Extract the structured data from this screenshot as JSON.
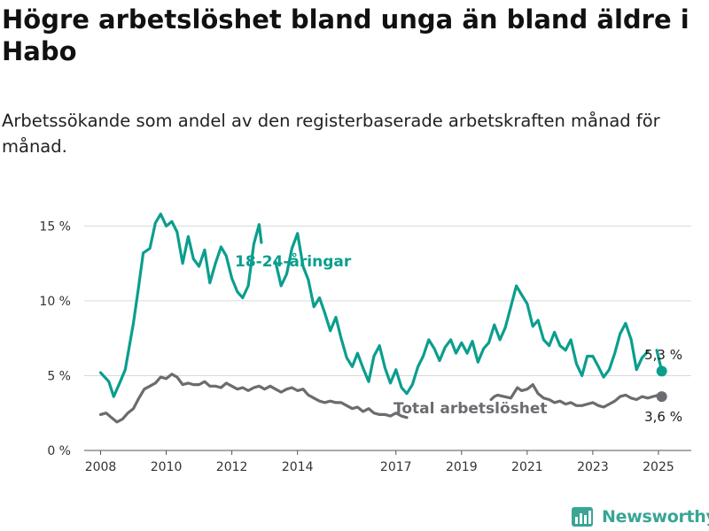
{
  "title": "Högre arbetslöshet bland unga än bland äldre i Habo",
  "subtitle": "Arbetssökande som andel av den registerbaserade arbetskraften månad för månad.",
  "brand": {
    "name": "Newsworthy",
    "color": "#3aa594"
  },
  "colors": {
    "youth": "#0b9e8e",
    "total": "#6b6b70",
    "grid": "#d9d9d9",
    "axis": "#333333"
  },
  "chart_data": {
    "type": "line",
    "x_ticks": [
      "2008",
      "2010",
      "2012",
      "2014",
      "2017",
      "2019",
      "2021",
      "2023",
      "2025"
    ],
    "y_ticks": [
      "0 %",
      "5 %",
      "10 %",
      "15 %"
    ],
    "ylim": [
      0,
      16.5
    ],
    "xlim": [
      2007.5,
      2026.0
    ],
    "grid": "horizontal",
    "series": [
      {
        "name": "18-24-åringar",
        "end_label": "5,3 %",
        "points": [
          [
            2008.0,
            5.2
          ],
          [
            2008.25,
            4.6
          ],
          [
            2008.4,
            3.6
          ],
          [
            2008.6,
            4.6
          ],
          [
            2008.75,
            5.4
          ],
          [
            2009.0,
            8.5
          ],
          [
            2009.15,
            10.8
          ],
          [
            2009.3,
            13.2
          ],
          [
            2009.5,
            13.5
          ],
          [
            2009.67,
            15.2
          ],
          [
            2009.83,
            15.8
          ],
          [
            2010.0,
            15.0
          ],
          [
            2010.17,
            15.3
          ],
          [
            2010.33,
            14.6
          ],
          [
            2010.5,
            12.5
          ],
          [
            2010.67,
            14.3
          ],
          [
            2010.83,
            12.8
          ],
          [
            2011.0,
            12.3
          ],
          [
            2011.17,
            13.4
          ],
          [
            2011.33,
            11.2
          ],
          [
            2011.5,
            12.5
          ],
          [
            2011.67,
            13.6
          ],
          [
            2011.83,
            13.0
          ],
          [
            2012.0,
            11.5
          ],
          [
            2012.17,
            10.6
          ],
          [
            2012.33,
            10.2
          ],
          [
            2012.5,
            11.0
          ],
          [
            2012.67,
            13.8
          ],
          [
            2012.83,
            15.1
          ],
          [
            2012.9,
            13.9
          ]
        ],
        "points_2": [
          [
            2013.33,
            12.6
          ],
          [
            2013.5,
            11.0
          ],
          [
            2013.67,
            11.8
          ],
          [
            2013.83,
            13.5
          ],
          [
            2014.0,
            14.5
          ],
          [
            2014.17,
            12.3
          ],
          [
            2014.33,
            11.4
          ],
          [
            2014.5,
            9.6
          ],
          [
            2014.67,
            10.2
          ],
          [
            2014.83,
            9.2
          ],
          [
            2015.0,
            8.0
          ],
          [
            2015.17,
            8.9
          ],
          [
            2015.33,
            7.5
          ],
          [
            2015.5,
            6.2
          ],
          [
            2015.67,
            5.6
          ],
          [
            2015.83,
            6.5
          ],
          [
            2016.0,
            5.5
          ],
          [
            2016.17,
            4.6
          ],
          [
            2016.33,
            6.3
          ],
          [
            2016.5,
            7.0
          ],
          [
            2016.67,
            5.5
          ],
          [
            2016.83,
            4.5
          ],
          [
            2017.0,
            5.4
          ],
          [
            2017.17,
            4.2
          ],
          [
            2017.33,
            3.8
          ],
          [
            2017.5,
            4.4
          ],
          [
            2017.67,
            5.6
          ],
          [
            2017.83,
            6.3
          ],
          [
            2018.0,
            7.4
          ],
          [
            2018.17,
            6.8
          ],
          [
            2018.33,
            6.0
          ],
          [
            2018.5,
            6.9
          ],
          [
            2018.67,
            7.4
          ],
          [
            2018.83,
            6.5
          ],
          [
            2019.0,
            7.2
          ],
          [
            2019.17,
            6.5
          ],
          [
            2019.33,
            7.3
          ],
          [
            2019.5,
            5.9
          ],
          [
            2019.67,
            6.8
          ],
          [
            2019.83,
            7.2
          ],
          [
            2020.0,
            8.4
          ],
          [
            2020.17,
            7.4
          ],
          [
            2020.33,
            8.2
          ],
          [
            2020.5,
            9.6
          ],
          [
            2020.67,
            11.0
          ],
          [
            2020.83,
            10.4
          ],
          [
            2021.0,
            9.8
          ],
          [
            2021.17,
            8.3
          ],
          [
            2021.33,
            8.7
          ],
          [
            2021.5,
            7.4
          ],
          [
            2021.67,
            7.0
          ],
          [
            2021.83,
            7.9
          ],
          [
            2022.0,
            7.0
          ],
          [
            2022.17,
            6.7
          ],
          [
            2022.33,
            7.4
          ],
          [
            2022.5,
            5.8
          ],
          [
            2022.67,
            5.0
          ],
          [
            2022.83,
            6.3
          ],
          [
            2023.0,
            6.3
          ],
          [
            2023.17,
            5.6
          ],
          [
            2023.33,
            4.9
          ],
          [
            2023.5,
            5.4
          ],
          [
            2023.67,
            6.5
          ],
          [
            2023.83,
            7.8
          ],
          [
            2024.0,
            8.5
          ],
          [
            2024.17,
            7.4
          ],
          [
            2024.33,
            5.4
          ],
          [
            2024.5,
            6.2
          ],
          [
            2024.67,
            6.6
          ]
        ],
        "points_3": [
          [
            2024.95,
            6.7
          ],
          [
            2025.1,
            5.3
          ]
        ]
      },
      {
        "name": "Total arbetslöshet",
        "end_label": "3,6 %",
        "points": [
          [
            2008.0,
            2.4
          ],
          [
            2008.17,
            2.5
          ],
          [
            2008.33,
            2.2
          ],
          [
            2008.5,
            1.9
          ],
          [
            2008.67,
            2.1
          ],
          [
            2008.83,
            2.5
          ],
          [
            2009.0,
            2.8
          ],
          [
            2009.17,
            3.5
          ],
          [
            2009.33,
            4.1
          ],
          [
            2009.5,
            4.3
          ],
          [
            2009.67,
            4.5
          ],
          [
            2009.83,
            4.9
          ],
          [
            2010.0,
            4.8
          ],
          [
            2010.17,
            5.1
          ],
          [
            2010.33,
            4.9
          ],
          [
            2010.5,
            4.4
          ],
          [
            2010.67,
            4.5
          ],
          [
            2010.83,
            4.4
          ],
          [
            2011.0,
            4.4
          ],
          [
            2011.17,
            4.6
          ],
          [
            2011.33,
            4.3
          ],
          [
            2011.5,
            4.3
          ],
          [
            2011.67,
            4.2
          ],
          [
            2011.83,
            4.5
          ],
          [
            2012.0,
            4.3
          ],
          [
            2012.17,
            4.1
          ],
          [
            2012.33,
            4.2
          ],
          [
            2012.5,
            4.0
          ],
          [
            2012.67,
            4.2
          ],
          [
            2012.83,
            4.3
          ],
          [
            2013.0,
            4.1
          ],
          [
            2013.17,
            4.3
          ],
          [
            2013.33,
            4.1
          ],
          [
            2013.5,
            3.9
          ],
          [
            2013.67,
            4.1
          ],
          [
            2013.83,
            4.2
          ],
          [
            2014.0,
            4.0
          ],
          [
            2014.17,
            4.1
          ],
          [
            2014.33,
            3.7
          ],
          [
            2014.5,
            3.5
          ],
          [
            2014.67,
            3.3
          ],
          [
            2014.83,
            3.2
          ],
          [
            2015.0,
            3.3
          ],
          [
            2015.17,
            3.2
          ],
          [
            2015.33,
            3.2
          ],
          [
            2015.5,
            3.0
          ],
          [
            2015.67,
            2.8
          ],
          [
            2015.83,
            2.9
          ],
          [
            2016.0,
            2.6
          ],
          [
            2016.17,
            2.8
          ],
          [
            2016.33,
            2.5
          ],
          [
            2016.5,
            2.4
          ],
          [
            2016.67,
            2.4
          ],
          [
            2016.83,
            2.3
          ],
          [
            2017.0,
            2.5
          ],
          [
            2017.17,
            2.3
          ],
          [
            2017.33,
            2.2
          ]
        ],
        "points_2": [
          [
            2019.9,
            3.4
          ],
          [
            2020.0,
            3.6
          ],
          [
            2020.1,
            3.7
          ],
          [
            2020.5,
            3.5
          ],
          [
            2020.7,
            4.2
          ],
          [
            2020.83,
            4.0
          ],
          [
            2021.0,
            4.1
          ],
          [
            2021.17,
            4.4
          ],
          [
            2021.33,
            3.8
          ],
          [
            2021.5,
            3.5
          ],
          [
            2021.67,
            3.4
          ],
          [
            2021.83,
            3.2
          ],
          [
            2022.0,
            3.3
          ],
          [
            2022.17,
            3.1
          ],
          [
            2022.33,
            3.2
          ],
          [
            2022.5,
            3.0
          ],
          [
            2022.67,
            3.0
          ],
          [
            2022.83,
            3.1
          ],
          [
            2023.0,
            3.2
          ],
          [
            2023.17,
            3.0
          ],
          [
            2023.33,
            2.9
          ],
          [
            2023.5,
            3.1
          ],
          [
            2023.67,
            3.3
          ],
          [
            2023.83,
            3.6
          ],
          [
            2024.0,
            3.7
          ],
          [
            2024.17,
            3.5
          ],
          [
            2024.33,
            3.4
          ],
          [
            2024.5,
            3.6
          ],
          [
            2024.67,
            3.5
          ],
          [
            2024.83,
            3.6
          ],
          [
            2025.0,
            3.7
          ],
          [
            2025.1,
            3.6
          ]
        ]
      }
    ]
  }
}
